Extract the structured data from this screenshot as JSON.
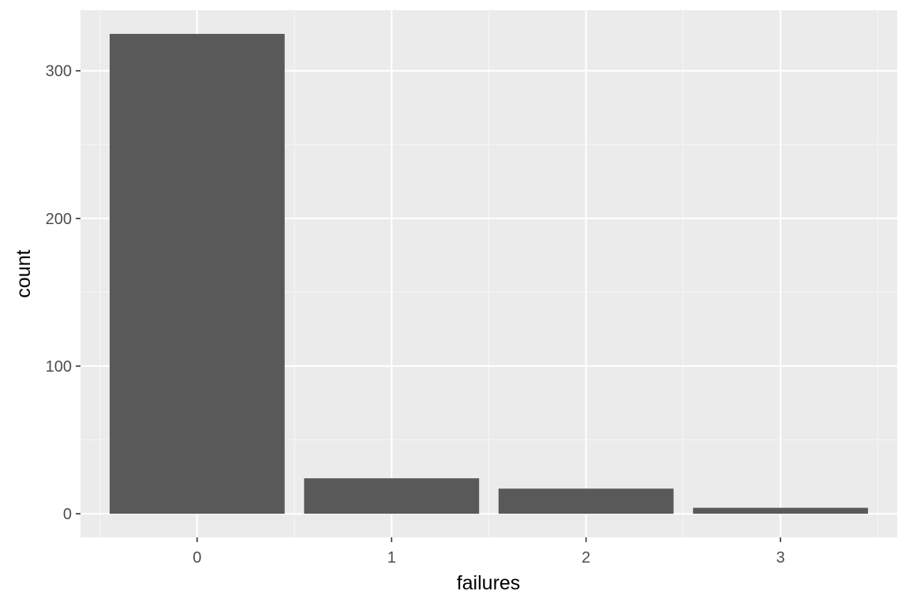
{
  "chart_data": {
    "type": "bar",
    "title": "",
    "xlabel": "failures",
    "ylabel": "count",
    "categories": [
      "0",
      "1",
      "2",
      "3"
    ],
    "values": [
      325,
      24,
      17,
      4
    ],
    "ylim": [
      -16,
      341
    ],
    "y_ticks": [
      0,
      100,
      200,
      300
    ],
    "y_tick_labels": [
      "0",
      "100",
      "200",
      "300"
    ],
    "grid": true,
    "legend": "none",
    "colors": {
      "panel_background": "#ebebeb",
      "grid_major": "#ffffff",
      "grid_minor": "#f5f5f5",
      "bar_fill": "#595959",
      "tick_text": "#4d4d4d",
      "axis_title_text": "#000000"
    }
  }
}
